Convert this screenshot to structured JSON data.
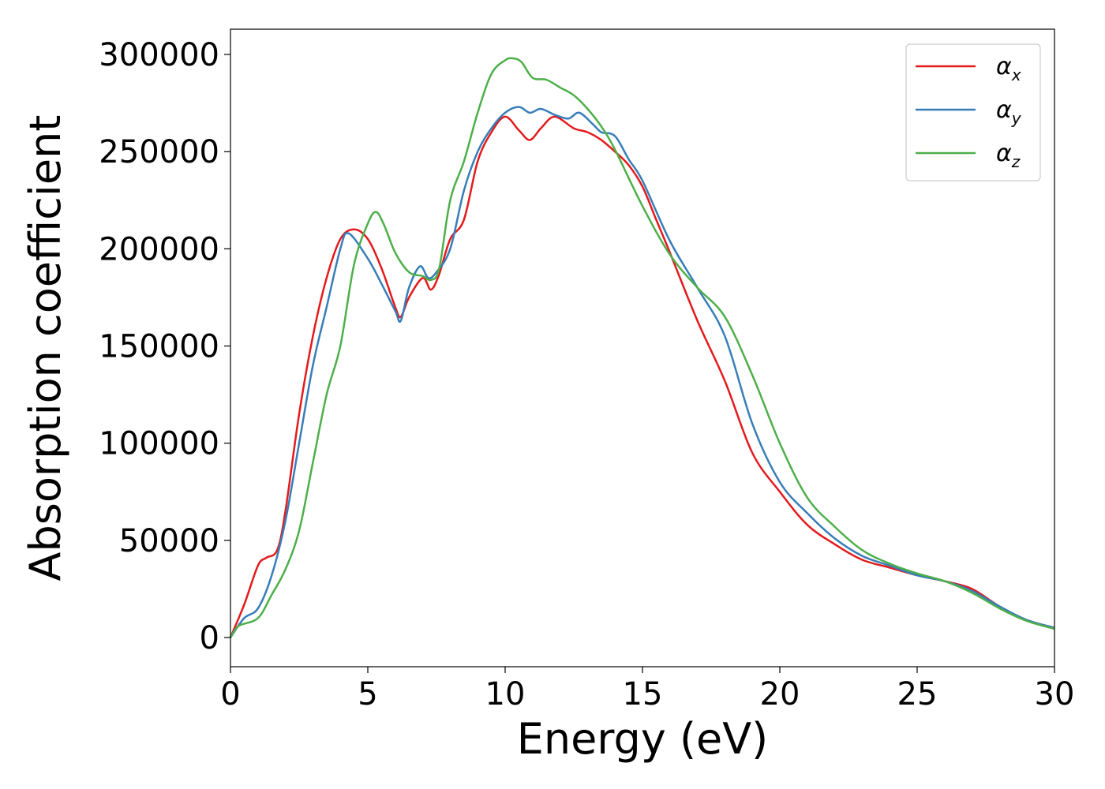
{
  "chart_data": {
    "type": "line",
    "xlabel": "Energy (eV)",
    "ylabel": "Absorption coefficient",
    "xlim": [
      0,
      30
    ],
    "ylim": [
      -15000,
      313000
    ],
    "xticks": [
      "0",
      "5",
      "10",
      "15",
      "20",
      "25",
      "30"
    ],
    "yticks": [
      "0",
      "50000",
      "100000",
      "150000",
      "200000",
      "250000",
      "300000"
    ],
    "grid": false,
    "legend_position": "top-right",
    "series": [
      {
        "name": "αx",
        "symbol": "α",
        "subscript": "x",
        "color": "#e41a1c",
        "x": [
          0,
          0.5,
          1.0,
          1.3,
          1.7,
          2.0,
          2.5,
          3.0,
          3.5,
          4.0,
          4.5,
          5.0,
          5.5,
          6.0,
          6.2,
          6.5,
          7.0,
          7.3,
          7.6,
          8.0,
          8.5,
          9.0,
          9.5,
          10.0,
          10.5,
          10.9,
          11.3,
          11.8,
          12.5,
          13.0,
          13.5,
          14.0,
          14.5,
          15.0,
          15.5,
          16.0,
          17.0,
          18.0,
          19.0,
          20.0,
          21.0,
          22.0,
          23.0,
          24.0,
          25.0,
          26.0,
          27.0,
          28.0,
          29.0,
          30.0
        ],
        "y": [
          0,
          17000,
          37000,
          41000,
          45000,
          65000,
          115000,
          155000,
          185000,
          205000,
          210000,
          205000,
          190000,
          170000,
          165000,
          175000,
          185000,
          179000,
          187000,
          205000,
          215000,
          245000,
          260000,
          268000,
          261000,
          256000,
          262000,
          268000,
          262000,
          260000,
          256000,
          250000,
          243000,
          232000,
          215000,
          198000,
          163000,
          132000,
          95000,
          75000,
          58000,
          48000,
          40000,
          36000,
          32000,
          29000,
          25000,
          16000,
          9000,
          5000
        ]
      },
      {
        "name": "αy",
        "symbol": "α",
        "subscript": "y",
        "color": "#377eb8",
        "x": [
          0,
          0.5,
          1.0,
          1.5,
          2.0,
          2.5,
          3.0,
          3.5,
          4.0,
          4.3,
          5.0,
          5.5,
          6.0,
          6.2,
          6.5,
          6.9,
          7.2,
          7.5,
          8.0,
          8.5,
          9.0,
          9.5,
          10.0,
          10.5,
          10.9,
          11.3,
          11.8,
          12.3,
          12.7,
          13.2,
          13.5,
          14.0,
          14.5,
          15.0,
          16.0,
          17.0,
          18.0,
          19.0,
          20.0,
          21.0,
          22.0,
          23.0,
          24.0,
          25.0,
          26.0,
          27.0,
          28.0,
          29.0,
          30.0
        ],
        "y": [
          0,
          10000,
          15000,
          32000,
          60000,
          100000,
          140000,
          170000,
          200000,
          208000,
          195000,
          182000,
          168000,
          163000,
          180000,
          191000,
          185000,
          188000,
          200000,
          230000,
          250000,
          262000,
          270000,
          273000,
          270000,
          272000,
          269000,
          267000,
          270000,
          264000,
          260000,
          258000,
          246000,
          235000,
          204000,
          180000,
          155000,
          110000,
          80000,
          64000,
          51000,
          42000,
          37000,
          32000,
          29000,
          24000,
          16000,
          9000,
          5000
        ]
      },
      {
        "name": "αz",
        "symbol": "α",
        "subscript": "z",
        "color": "#4daf4a",
        "x": [
          0,
          0.3,
          1.0,
          1.5,
          2.0,
          2.5,
          3.0,
          3.5,
          4.0,
          4.5,
          5.0,
          5.3,
          5.6,
          6.0,
          6.5,
          7.0,
          7.3,
          7.6,
          8.0,
          8.5,
          9.0,
          9.5,
          10.0,
          10.3,
          10.6,
          11.0,
          11.5,
          12.0,
          12.5,
          13.0,
          13.5,
          14.0,
          15.0,
          16.0,
          17.0,
          18.0,
          19.0,
          20.0,
          21.0,
          22.0,
          23.0,
          24.0,
          25.0,
          26.0,
          27.0,
          28.0,
          29.0,
          30.0
        ],
        "y": [
          0,
          6000,
          10000,
          22000,
          35000,
          55000,
          90000,
          125000,
          150000,
          192000,
          213000,
          219000,
          212000,
          198000,
          188000,
          186000,
          184000,
          190000,
          225000,
          245000,
          270000,
          290000,
          297000,
          298000,
          296000,
          288000,
          287000,
          283000,
          279000,
          272000,
          263000,
          251000,
          222000,
          197000,
          180000,
          165000,
          135000,
          100000,
          72000,
          57000,
          45000,
          38000,
          33000,
          29000,
          23000,
          15000,
          8500,
          4500
        ]
      }
    ]
  }
}
